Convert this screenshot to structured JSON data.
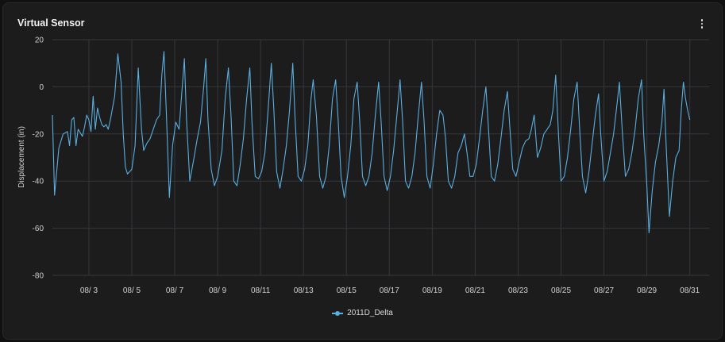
{
  "card": {
    "title": "Virtual Sensor",
    "menu_icon": "more-vertical-icon"
  },
  "colors": {
    "series": "#5aaee0",
    "grid": "#34373d",
    "background": "#1c1c1c"
  },
  "chart_data": {
    "type": "line",
    "ylabel": "Displacement (in)",
    "ylim": [
      -80,
      20
    ],
    "yticks": [
      20,
      0,
      -20,
      -40,
      -60,
      -80
    ],
    "xlim": [
      1.3,
      31.9
    ],
    "xticks": [
      {
        "v": 3,
        "label": "08/ 3"
      },
      {
        "v": 5,
        "label": "08/ 5"
      },
      {
        "v": 7,
        "label": "08/ 7"
      },
      {
        "v": 9,
        "label": "08/ 9"
      },
      {
        "v": 11,
        "label": "08/11"
      },
      {
        "v": 13,
        "label": "08/13"
      },
      {
        "v": 15,
        "label": "08/15"
      },
      {
        "v": 17,
        "label": "08/17"
      },
      {
        "v": 19,
        "label": "08/19"
      },
      {
        "v": 21,
        "label": "08/21"
      },
      {
        "v": 23,
        "label": "08/23"
      },
      {
        "v": 25,
        "label": "08/25"
      },
      {
        "v": 27,
        "label": "08/27"
      },
      {
        "v": 29,
        "label": "08/29"
      },
      {
        "v": 31,
        "label": "08/31"
      }
    ],
    "grid": true,
    "legend_position": "bottom-center",
    "series": [
      {
        "name": "2011D_Delta",
        "points": [
          [
            1.3,
            -12
          ],
          [
            1.4,
            -46
          ],
          [
            1.6,
            -26
          ],
          [
            1.8,
            -20
          ],
          [
            2.0,
            -19
          ],
          [
            2.1,
            -25
          ],
          [
            2.2,
            -14
          ],
          [
            2.3,
            -13
          ],
          [
            2.4,
            -25
          ],
          [
            2.5,
            -18
          ],
          [
            2.7,
            -21
          ],
          [
            2.8,
            -17
          ],
          [
            2.9,
            -12
          ],
          [
            3.0,
            -14
          ],
          [
            3.1,
            -19
          ],
          [
            3.2,
            -4
          ],
          [
            3.3,
            -18
          ],
          [
            3.4,
            -9
          ],
          [
            3.5,
            -13
          ],
          [
            3.6,
            -16
          ],
          [
            3.7,
            -17
          ],
          [
            3.8,
            -16
          ],
          [
            3.9,
            -18
          ],
          [
            4.0,
            -14
          ],
          [
            4.2,
            -4
          ],
          [
            4.35,
            14
          ],
          [
            4.5,
            2
          ],
          [
            4.6,
            -20
          ],
          [
            4.7,
            -34
          ],
          [
            4.8,
            -37
          ],
          [
            5.0,
            -35
          ],
          [
            5.15,
            -25
          ],
          [
            5.3,
            8
          ],
          [
            5.45,
            -18
          ],
          [
            5.55,
            -27
          ],
          [
            5.7,
            -24
          ],
          [
            5.85,
            -22
          ],
          [
            6.0,
            -18
          ],
          [
            6.15,
            -14
          ],
          [
            6.3,
            -12
          ],
          [
            6.4,
            5
          ],
          [
            6.5,
            15
          ],
          [
            6.62,
            -14
          ],
          [
            6.75,
            -47
          ],
          [
            6.9,
            -25
          ],
          [
            7.05,
            -15
          ],
          [
            7.2,
            -18
          ],
          [
            7.35,
            0
          ],
          [
            7.45,
            12
          ],
          [
            7.55,
            -14
          ],
          [
            7.7,
            -40
          ],
          [
            7.9,
            -30
          ],
          [
            8.05,
            -22
          ],
          [
            8.2,
            -15
          ],
          [
            8.35,
            0
          ],
          [
            8.45,
            12
          ],
          [
            8.55,
            -14
          ],
          [
            8.7,
            -35
          ],
          [
            8.85,
            -42
          ],
          [
            9.0,
            -38
          ],
          [
            9.2,
            -27
          ],
          [
            9.35,
            -5
          ],
          [
            9.5,
            8
          ],
          [
            9.62,
            -12
          ],
          [
            9.75,
            -40
          ],
          [
            9.9,
            -42
          ],
          [
            10.05,
            -33
          ],
          [
            10.2,
            -22
          ],
          [
            10.35,
            -5
          ],
          [
            10.5,
            8
          ],
          [
            10.6,
            -15
          ],
          [
            10.75,
            -38
          ],
          [
            10.9,
            -39
          ],
          [
            11.05,
            -36
          ],
          [
            11.2,
            -28
          ],
          [
            11.35,
            -10
          ],
          [
            11.5,
            10
          ],
          [
            11.62,
            -10
          ],
          [
            11.75,
            -36
          ],
          [
            11.9,
            -43
          ],
          [
            12.05,
            -35
          ],
          [
            12.2,
            -25
          ],
          [
            12.35,
            -10
          ],
          [
            12.5,
            10
          ],
          [
            12.6,
            -12
          ],
          [
            12.75,
            -38
          ],
          [
            12.9,
            -40
          ],
          [
            13.05,
            -35
          ],
          [
            13.2,
            -25
          ],
          [
            13.35,
            -5
          ],
          [
            13.45,
            3
          ],
          [
            13.6,
            -12
          ],
          [
            13.75,
            -38
          ],
          [
            13.9,
            -43
          ],
          [
            14.05,
            -38
          ],
          [
            14.2,
            -25
          ],
          [
            14.35,
            -5
          ],
          [
            14.5,
            3
          ],
          [
            14.62,
            -15
          ],
          [
            14.75,
            -38
          ],
          [
            14.9,
            -47
          ],
          [
            15.05,
            -38
          ],
          [
            15.2,
            -25
          ],
          [
            15.35,
            -5
          ],
          [
            15.5,
            2
          ],
          [
            15.62,
            -15
          ],
          [
            15.75,
            -38
          ],
          [
            15.9,
            -42
          ],
          [
            16.05,
            -38
          ],
          [
            16.2,
            -28
          ],
          [
            16.35,
            -12
          ],
          [
            16.5,
            2
          ],
          [
            16.62,
            -15
          ],
          [
            16.75,
            -38
          ],
          [
            16.9,
            -44
          ],
          [
            17.05,
            -38
          ],
          [
            17.2,
            -27
          ],
          [
            17.35,
            -12
          ],
          [
            17.5,
            3
          ],
          [
            17.62,
            -15
          ],
          [
            17.75,
            -40
          ],
          [
            17.9,
            -43
          ],
          [
            18.05,
            -38
          ],
          [
            18.2,
            -28
          ],
          [
            18.35,
            -12
          ],
          [
            18.5,
            2
          ],
          [
            18.62,
            -15
          ],
          [
            18.75,
            -38
          ],
          [
            18.9,
            -43
          ],
          [
            19.05,
            -33
          ],
          [
            19.2,
            -20
          ],
          [
            19.35,
            -10
          ],
          [
            19.5,
            -12
          ],
          [
            19.62,
            -22
          ],
          [
            19.75,
            -40
          ],
          [
            19.9,
            -43
          ],
          [
            20.05,
            -38
          ],
          [
            20.2,
            -28
          ],
          [
            20.35,
            -25
          ],
          [
            20.5,
            -20
          ],
          [
            20.62,
            -28
          ],
          [
            20.75,
            -38
          ],
          [
            20.9,
            -38
          ],
          [
            21.05,
            -33
          ],
          [
            21.2,
            -22
          ],
          [
            21.35,
            -10
          ],
          [
            21.5,
            0
          ],
          [
            21.62,
            -18
          ],
          [
            21.75,
            -38
          ],
          [
            21.9,
            -40
          ],
          [
            22.05,
            -33
          ],
          [
            22.2,
            -22
          ],
          [
            22.35,
            -10
          ],
          [
            22.5,
            -2
          ],
          [
            22.62,
            -18
          ],
          [
            22.75,
            -35
          ],
          [
            22.9,
            -38
          ],
          [
            23.05,
            -32
          ],
          [
            23.2,
            -26
          ],
          [
            23.35,
            -23
          ],
          [
            23.5,
            -22
          ],
          [
            23.62,
            -18
          ],
          [
            23.75,
            -12
          ],
          [
            23.9,
            -30
          ],
          [
            24.05,
            -26
          ],
          [
            24.2,
            -20
          ],
          [
            24.35,
            -18
          ],
          [
            24.5,
            -16
          ],
          [
            24.62,
            -10
          ],
          [
            24.75,
            5
          ],
          [
            24.88,
            -20
          ],
          [
            25.0,
            -40
          ],
          [
            25.15,
            -38
          ],
          [
            25.3,
            -30
          ],
          [
            25.45,
            -18
          ],
          [
            25.6,
            -5
          ],
          [
            25.75,
            2
          ],
          [
            25.88,
            -20
          ],
          [
            26.0,
            -38
          ],
          [
            26.15,
            -45
          ],
          [
            26.3,
            -36
          ],
          [
            26.45,
            -24
          ],
          [
            26.6,
            -12
          ],
          [
            26.75,
            -3
          ],
          [
            26.85,
            -20
          ],
          [
            27.0,
            -40
          ],
          [
            27.15,
            -36
          ],
          [
            27.3,
            -28
          ],
          [
            27.45,
            -20
          ],
          [
            27.6,
            -8
          ],
          [
            27.72,
            2
          ],
          [
            27.85,
            -18
          ],
          [
            28.0,
            -38
          ],
          [
            28.15,
            -35
          ],
          [
            28.3,
            -28
          ],
          [
            28.45,
            -18
          ],
          [
            28.6,
            -5
          ],
          [
            28.75,
            3
          ],
          [
            28.85,
            -20
          ],
          [
            29.0,
            -42
          ],
          [
            29.1,
            -62
          ],
          [
            29.25,
            -44
          ],
          [
            29.4,
            -32
          ],
          [
            29.55,
            -25
          ],
          [
            29.7,
            -15
          ],
          [
            29.8,
            -1
          ],
          [
            29.9,
            -25
          ],
          [
            30.05,
            -55
          ],
          [
            30.2,
            -40
          ],
          [
            30.35,
            -30
          ],
          [
            30.5,
            -27
          ],
          [
            30.6,
            -10
          ],
          [
            30.7,
            2
          ],
          [
            30.8,
            -5
          ],
          [
            30.9,
            -10
          ],
          [
            31.0,
            -14
          ]
        ]
      }
    ]
  }
}
